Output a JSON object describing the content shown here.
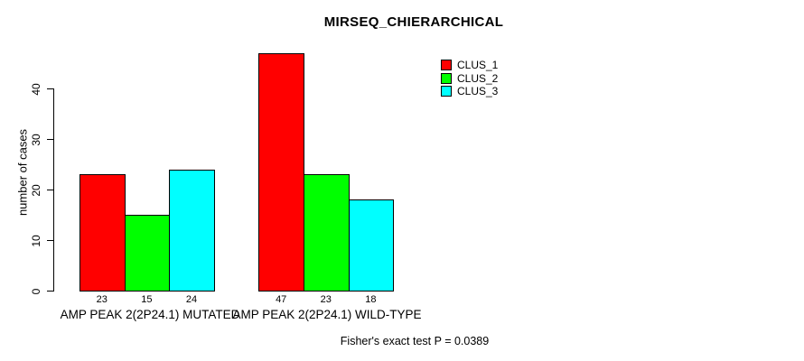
{
  "chart_data": {
    "type": "bar",
    "title": "MIRSEQ_CHIERARCHICAL",
    "ylabel": "number of cases",
    "xlabel": "",
    "categories": [
      "AMP PEAK 2(2P24.1) MUTATED",
      "AMP PEAK 2(2P24.1) WILD-TYPE"
    ],
    "series": [
      {
        "name": "CLUS_1",
        "color": "#FF0000",
        "values": [
          23,
          47
        ]
      },
      {
        "name": "CLUS_2",
        "color": "#00FF00",
        "values": [
          15,
          23
        ]
      },
      {
        "name": "CLUS_3",
        "color": "#00FFFF",
        "values": [
          24,
          18
        ]
      }
    ],
    "bar_value_labels": [
      [
        "23",
        "15",
        "24"
      ],
      [
        "47",
        "23",
        "18"
      ]
    ],
    "yticks": [
      "0",
      "10",
      "20",
      "30",
      "40"
    ],
    "ylim": [
      0,
      47
    ],
    "grid": false,
    "legend_position": "top-right",
    "annotation": "Fisher's exact test P = 0.0389"
  }
}
